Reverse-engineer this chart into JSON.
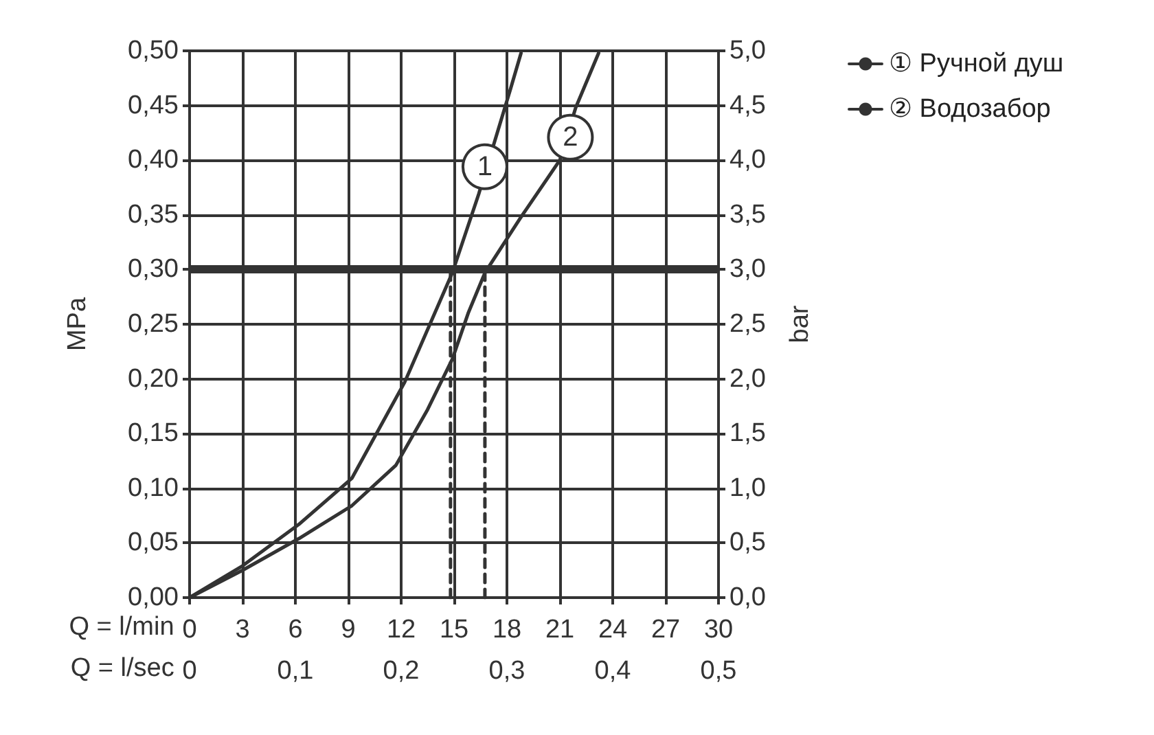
{
  "chart_data": {
    "type": "line",
    "xlabel": "Q = l/min",
    "x2label": "Q = l/sec",
    "ylabel": "MPa",
    "y2label": "bar",
    "xlim": [
      0,
      30
    ],
    "xticks": [
      0,
      3,
      6,
      9,
      12,
      15,
      18,
      21,
      24,
      27,
      30
    ],
    "x2lim": [
      0,
      0.5
    ],
    "x2ticks": [
      0,
      {
        "value": 0.1,
        "label": "0,1"
      },
      {
        "value": 0.2,
        "label": "0,2"
      },
      {
        "value": 0.3,
        "label": "0,3"
      },
      {
        "value": 0.4,
        "label": "0,4"
      },
      {
        "value": 0.5,
        "label": "0,5"
      }
    ],
    "ylim": [
      0,
      0.5
    ],
    "yticks": [
      {
        "value": 0,
        "label": "0,00"
      },
      {
        "value": 0.05,
        "label": "0,05"
      },
      {
        "value": 0.1,
        "label": "0,10"
      },
      {
        "value": 0.15,
        "label": "0,15"
      },
      {
        "value": 0.2,
        "label": "0,20"
      },
      {
        "value": 0.25,
        "label": "0,25"
      },
      {
        "value": 0.3,
        "label": "0,30"
      },
      {
        "value": 0.35,
        "label": "0,35"
      },
      {
        "value": 0.4,
        "label": "0,40"
      },
      {
        "value": 0.45,
        "label": "0,45"
      },
      {
        "value": 0.5,
        "label": "0,50"
      }
    ],
    "y2lim": [
      0,
      5
    ],
    "y2ticks": [
      {
        "value": 0,
        "label": "0,0"
      },
      {
        "value": 0.5,
        "label": "0,5"
      },
      {
        "value": 1,
        "label": "1,0"
      },
      {
        "value": 1.5,
        "label": "1,5"
      },
      {
        "value": 2,
        "label": "2,0"
      },
      {
        "value": 2.5,
        "label": "2,5"
      },
      {
        "value": 3,
        "label": "3,0"
      },
      {
        "value": 3.5,
        "label": "3,5"
      },
      {
        "value": 4,
        "label": "4,0"
      },
      {
        "value": 4.5,
        "label": "4,5"
      },
      {
        "value": 5,
        "label": "5,0"
      }
    ],
    "grid": true,
    "legend": "top right",
    "marker": "none",
    "line_style": "solid",
    "series": [
      {
        "name": "① Ручной душ",
        "color": "#333333",
        "x": [
          0,
          3,
          6.2,
          9.2,
          12.2,
          14.9,
          16.4,
          18.2,
          18.8
        ],
        "values": [
          0,
          0.029,
          0.067,
          0.109,
          0.197,
          0.297,
          0.369,
          0.465,
          0.498
        ]
      },
      {
        "name": "② Водозабор",
        "color": "#333333",
        "x": [
          0,
          3,
          6.2,
          9.2,
          11.7,
          13.5,
          14.9,
          15.8,
          16.75,
          18.8,
          21,
          21.9,
          23.2
        ],
        "values": [
          0,
          0.025,
          0.054,
          0.084,
          0.121,
          0.172,
          0.218,
          0.26,
          0.297,
          0.348,
          0.4,
          0.448,
          0.498
        ]
      },
      {
        "type": "line",
        "color": "#333333",
        "line_style": "dashed",
        "x": [
          14.8,
          14.8
        ],
        "values": [
          0,
          0.3
        ]
      },
      {
        "type": "line",
        "color": "#333333",
        "line_style": "dashed",
        "x": [
          16.75,
          16.75
        ],
        "values": [
          0,
          0.3
        ]
      }
    ],
    "ref_lines": [
      {
        "axis": "y",
        "value": 0.3,
        "color": "#333333"
      }
    ],
    "annotations": [
      {
        "text": "1",
        "x": 16.75,
        "y": 0.394
      },
      {
        "text": "2",
        "x": 21.6,
        "y": 0.421
      }
    ]
  }
}
